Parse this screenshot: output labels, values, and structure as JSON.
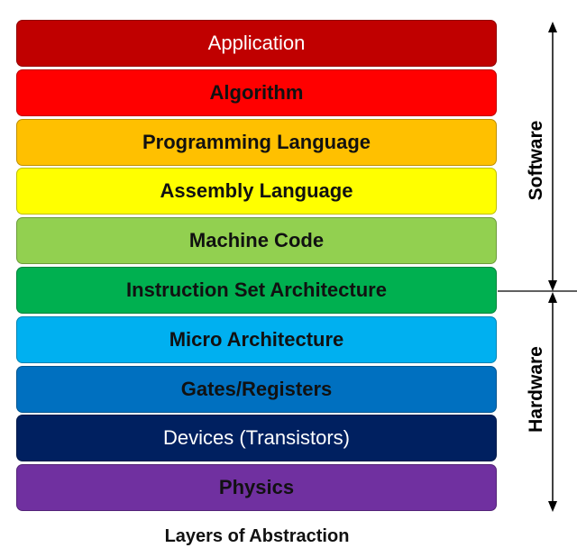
{
  "layers": [
    {
      "label": "Application",
      "color": "#C00000",
      "text_color": "#FFFFFF"
    },
    {
      "label": "Algorithm",
      "color": "#FF0000",
      "text_color": "#111111"
    },
    {
      "label": "Programming Language",
      "color": "#FFC000",
      "text_color": "#111111"
    },
    {
      "label": "Assembly Language",
      "color": "#FFFF00",
      "text_color": "#111111"
    },
    {
      "label": "Machine Code",
      "color": "#92D050",
      "text_color": "#111111"
    },
    {
      "label": "Instruction Set Architecture",
      "color": "#00B050",
      "text_color": "#111111"
    },
    {
      "label": "Micro Architecture",
      "color": "#00B0F0",
      "text_color": "#111111"
    },
    {
      "label": "Gates/Registers",
      "color": "#0070C0",
      "text_color": "#111111"
    },
    {
      "label": "Devices (Transistors)",
      "color": "#002060",
      "text_color": "#FFFFFF"
    },
    {
      "label": "Physics",
      "color": "#7030A0",
      "text_color": "#111111"
    }
  ],
  "software_label": "Software",
  "hardware_label": "Hardware",
  "caption": "Layers of Abstraction"
}
